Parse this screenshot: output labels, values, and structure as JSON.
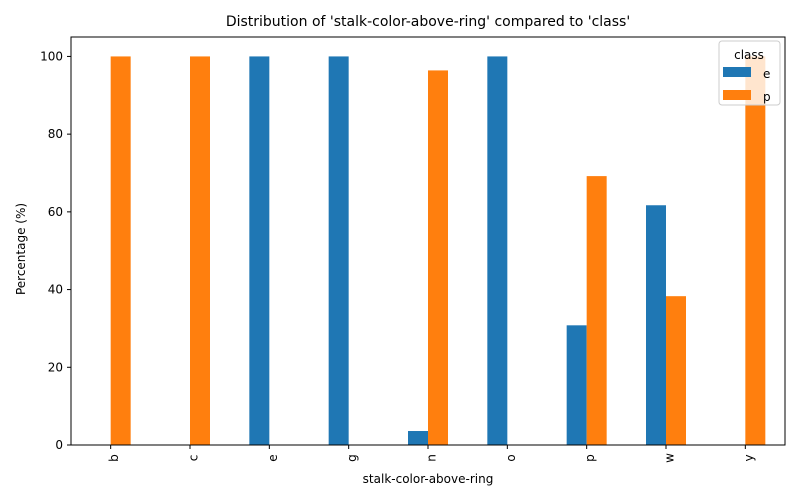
{
  "chart_data": {
    "type": "bar",
    "title": "Distribution of 'stalk-color-above-ring' compared to 'class'",
    "xlabel": "stalk-color-above-ring",
    "ylabel": "Percentage (%)",
    "categories": [
      "b",
      "c",
      "e",
      "g",
      "n",
      "o",
      "p",
      "w",
      "y"
    ],
    "series": [
      {
        "name": "e",
        "color": "#1f77b4",
        "values": [
          0,
          0,
          100,
          100,
          3.6,
          100,
          30.8,
          61.7,
          0
        ]
      },
      {
        "name": "p",
        "color": "#ff7f0e",
        "values": [
          100,
          100,
          0,
          0,
          96.4,
          0,
          69.2,
          38.3,
          100
        ]
      }
    ],
    "ylim": [
      0,
      105
    ],
    "yticks": [
      0,
      20,
      40,
      60,
      80,
      100
    ],
    "grid": false,
    "legend": {
      "title": "class",
      "placement": "top-right"
    }
  }
}
